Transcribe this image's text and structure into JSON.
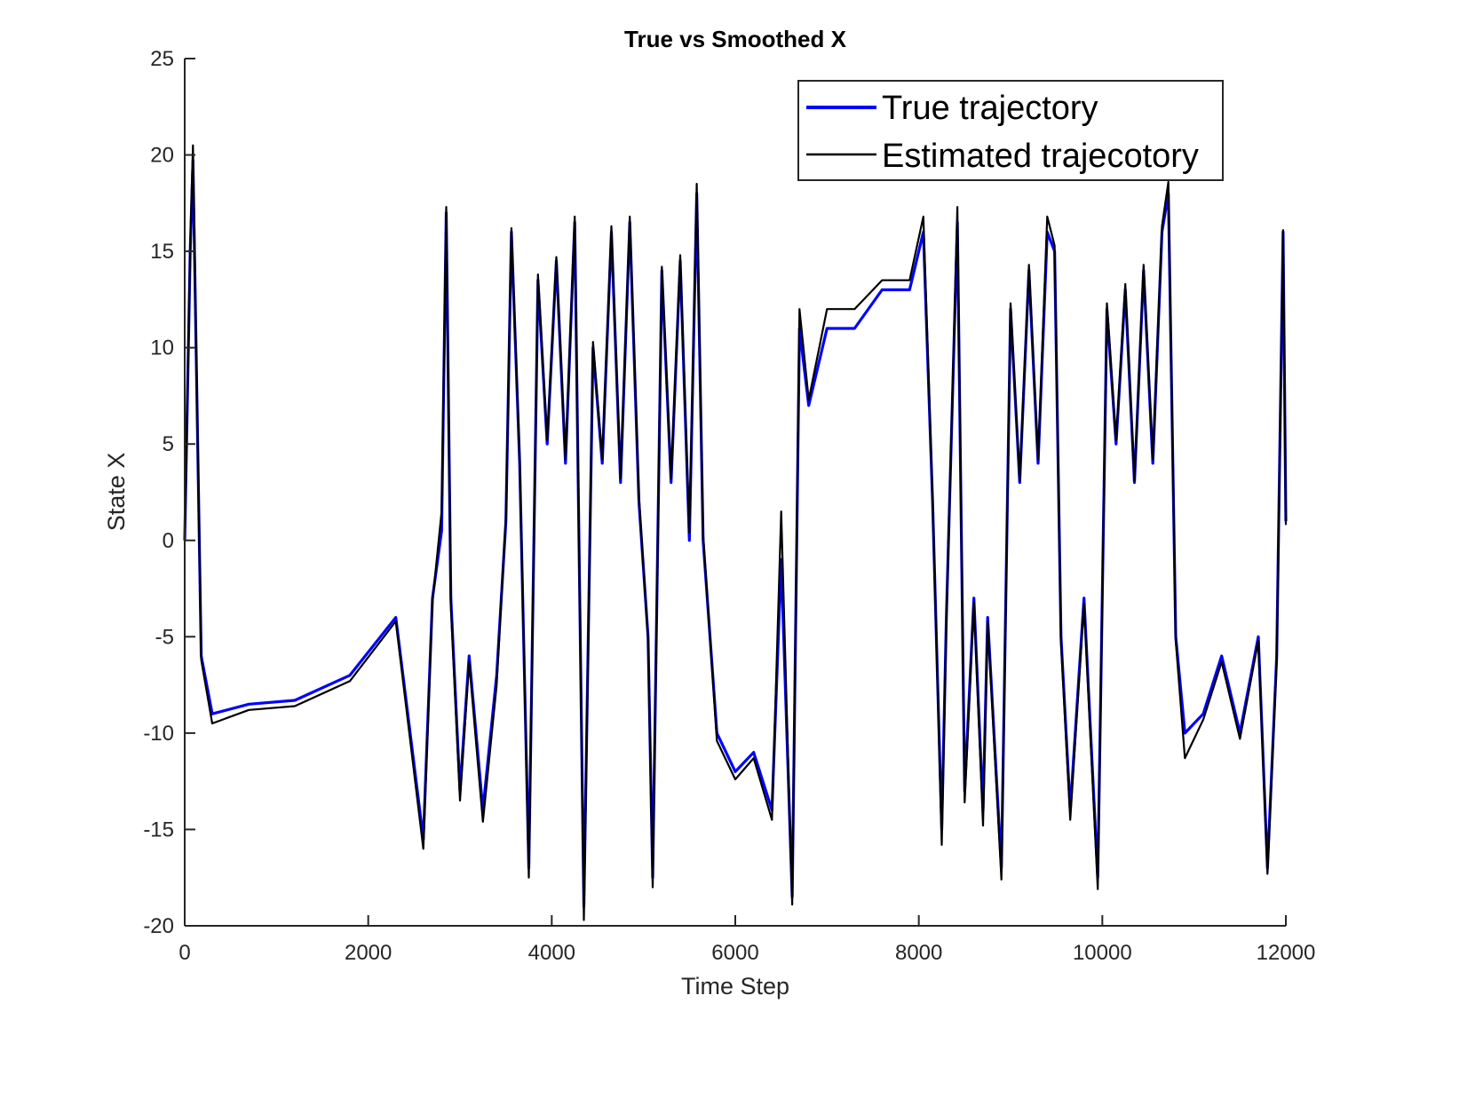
{
  "chart_data": {
    "type": "line",
    "title": "True vs Smoothed X",
    "xlabel": "Time Step",
    "ylabel": "State X",
    "xlim": [
      0,
      12000
    ],
    "ylim": [
      -20,
      25
    ],
    "xticks": [
      0,
      2000,
      4000,
      6000,
      8000,
      10000,
      12000
    ],
    "yticks": [
      -20,
      -15,
      -10,
      -5,
      0,
      5,
      10,
      15,
      20,
      25
    ],
    "grid": false,
    "legend_position": "top-right",
    "series": [
      {
        "name": "True trajectory",
        "color": "#0000ff",
        "x": [
          0,
          60,
          90,
          180,
          300,
          700,
          1200,
          1800,
          2300,
          2600,
          2700,
          2800,
          2850,
          2900,
          3000,
          3100,
          3250,
          3400,
          3500,
          3560,
          3650,
          3750,
          3850,
          3950,
          4050,
          4150,
          4250,
          4350,
          4450,
          4550,
          4650,
          4750,
          4850,
          4950,
          5050,
          5100,
          5200,
          5300,
          5400,
          5500,
          5580,
          5650,
          5800,
          6000,
          6200,
          6400,
          6500,
          6620,
          6700,
          6800,
          7000,
          7300,
          7600,
          7900,
          8050,
          8150,
          8250,
          8300,
          8420,
          8500,
          8600,
          8700,
          8750,
          8900,
          9000,
          9100,
          9200,
          9300,
          9400,
          9480,
          9550,
          9650,
          9800,
          9950,
          10050,
          10150,
          10250,
          10350,
          10450,
          10550,
          10650,
          10720,
          10800,
          10900,
          11100,
          11300,
          11500,
          11700,
          11800,
          11900,
          11970,
          12000
        ],
        "values": [
          0,
          15,
          19.7,
          -6,
          -9,
          -8.5,
          -8.3,
          -7,
          -4,
          -15.5,
          -3,
          0.5,
          17,
          -3,
          -13,
          -6,
          -14,
          -7,
          1,
          16,
          4,
          -17,
          13.5,
          5,
          14.5,
          4,
          16.5,
          -19,
          10,
          4,
          16,
          3,
          16.5,
          2,
          -5,
          -17.5,
          14,
          3,
          14.5,
          0,
          18,
          0,
          -10,
          -12,
          -11,
          -14,
          -1,
          -18.5,
          11,
          7,
          11,
          11,
          13,
          13,
          16,
          2,
          -15,
          -4,
          16.5,
          -13,
          -3,
          -14,
          -4,
          -17,
          12,
          3,
          14,
          4,
          16,
          15,
          -5,
          -14,
          -3,
          -17.5,
          12,
          5,
          13,
          3,
          14,
          4,
          16,
          18,
          -5,
          -10,
          -9,
          -6,
          -10,
          -5,
          -17,
          -6,
          16,
          1
        ]
      },
      {
        "name": "Estimated trajecotory",
        "color": "#000000",
        "x": [
          0,
          60,
          90,
          180,
          300,
          700,
          1200,
          1800,
          2300,
          2600,
          2700,
          2800,
          2850,
          2900,
          3000,
          3100,
          3250,
          3400,
          3500,
          3560,
          3650,
          3750,
          3850,
          3950,
          4050,
          4150,
          4250,
          4350,
          4450,
          4550,
          4650,
          4750,
          4850,
          4950,
          5050,
          5100,
          5200,
          5300,
          5400,
          5500,
          5580,
          5650,
          5800,
          6000,
          6200,
          6400,
          6500,
          6620,
          6700,
          6800,
          7000,
          7300,
          7600,
          7900,
          8050,
          8150,
          8250,
          8300,
          8420,
          8500,
          8600,
          8700,
          8750,
          8900,
          9000,
          9100,
          9200,
          9300,
          9400,
          9480,
          9550,
          9650,
          9800,
          9950,
          10050,
          10150,
          10250,
          10350,
          10450,
          10550,
          10650,
          10720,
          10800,
          10900,
          11100,
          11300,
          11500,
          11700,
          11800,
          11900,
          11970,
          12000
        ],
        "values": [
          0,
          15.3,
          20.5,
          -6.2,
          -9.5,
          -8.8,
          -8.6,
          -7.3,
          -4.2,
          -16,
          -3.2,
          1.5,
          17.3,
          -3.4,
          -13.5,
          -6.3,
          -14.6,
          -7.5,
          1.2,
          16.2,
          4.3,
          -17.5,
          13.8,
          5.2,
          14.7,
          4.2,
          16.8,
          -19.7,
          10.3,
          4.2,
          16.3,
          3.2,
          16.8,
          2.3,
          -5.2,
          -18,
          14.2,
          3.2,
          14.8,
          0.4,
          18.5,
          0.3,
          -10.4,
          -12.4,
          -11.3,
          -14.5,
          1.5,
          -18.9,
          12,
          7.3,
          12,
          12,
          13.5,
          13.5,
          16.8,
          2.2,
          -15.8,
          -4.3,
          17.3,
          -13.6,
          -3.2,
          -14.8,
          -4.2,
          -17.6,
          12.3,
          3.1,
          14.3,
          4.2,
          16.8,
          15.3,
          -5.3,
          -14.5,
          -3.3,
          -18.1,
          12.3,
          5.2,
          13.3,
          3.1,
          14.3,
          4.2,
          16.3,
          18.6,
          -5.2,
          -11.3,
          -9.3,
          -6.3,
          -10.3,
          -5.2,
          -17.3,
          -6.3,
          16.1,
          0.8
        ]
      }
    ]
  }
}
